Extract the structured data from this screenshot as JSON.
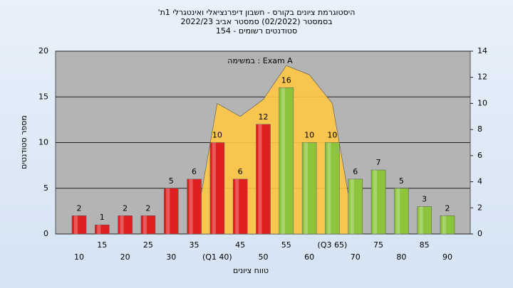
{
  "chart_data": {
    "type": "bar",
    "title": [
      "היסטוגרמת ציונים בקורס - חשבון דיפרנציאלי ואינטגרלי 1ת'",
      "בסמסטר (02/2022) סמסטר אביב 2022/23",
      "סטודנטים רשומים - 154"
    ],
    "legend_label": "במשימה : Exam A",
    "x_label": "טווח ציונים",
    "y_label": "מספר סטודנטים",
    "categories": [
      "10",
      "15",
      "20",
      "25",
      "30",
      "35",
      "(Q1 40)",
      "45",
      "50",
      "55",
      "60",
      "(Q3 65)",
      "70",
      "75",
      "80",
      "85",
      "90"
    ],
    "series": [
      {
        "values": [
          2,
          1,
          2,
          2,
          5,
          6,
          10,
          6,
          12,
          16,
          10,
          10,
          6,
          7,
          5,
          3,
          2
        ],
        "colors": [
          "#e02020",
          "#e02020",
          "#e02020",
          "#e02020",
          "#e02020",
          "#e02020",
          "#e02020",
          "#e02020",
          "#e02020",
          "#8cc43c",
          "#8cc43c",
          "#8cc43c",
          "#8cc43c",
          "#8cc43c",
          "#8cc43c",
          "#8cc43c",
          "#8cc43c"
        ]
      },
      {
        "type": "area",
        "axis": "y2",
        "color": "#ffc845",
        "values": [
          null,
          null,
          null,
          null,
          null,
          0,
          10,
          9,
          10.3,
          12.9,
          12.2,
          10,
          0,
          null,
          null,
          null,
          null
        ]
      }
    ],
    "ylim": [
      0,
      20
    ],
    "yticks": [
      0,
      5,
      10,
      15,
      20
    ],
    "y2lim": [
      0,
      14
    ],
    "y2ticks": [
      0,
      2,
      4,
      6,
      8,
      10,
      12,
      14
    ],
    "grid": true
  }
}
